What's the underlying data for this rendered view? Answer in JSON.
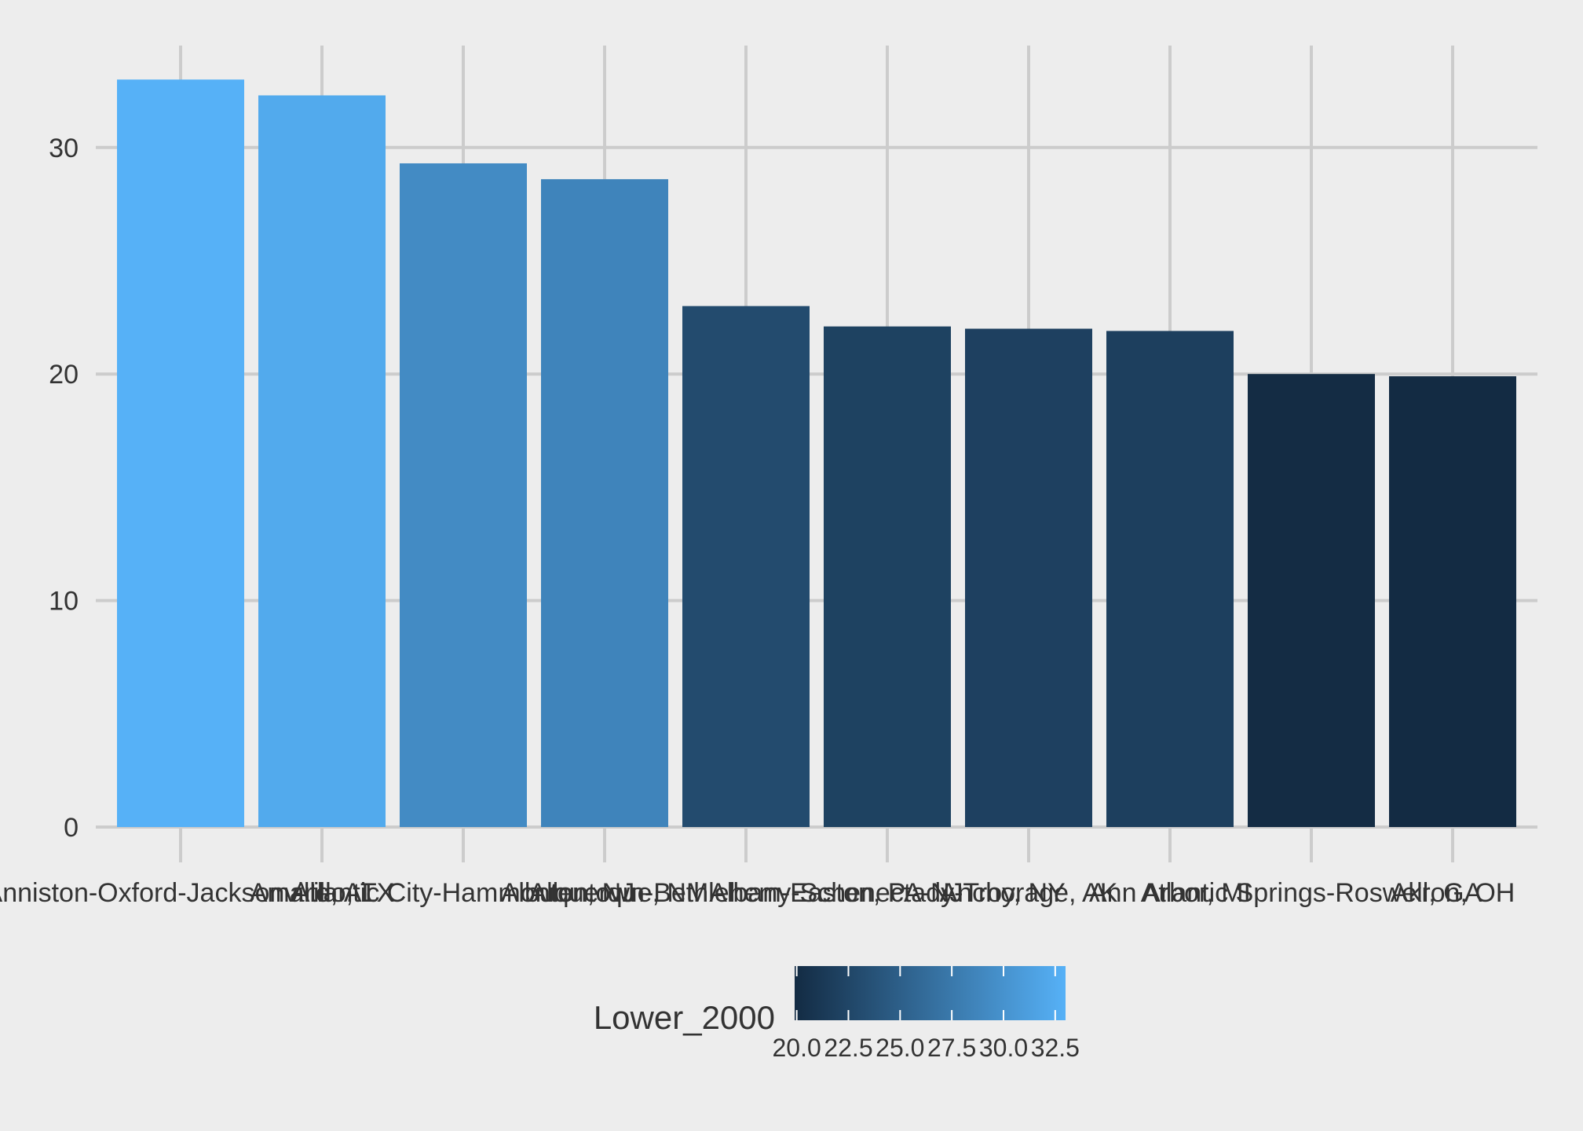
{
  "chart_data": {
    "type": "bar",
    "categories": [
      "Anniston-Oxford-Jacksonville, AL",
      "Amarillo, TX",
      "Atlantic City-Hammonton, NJ",
      "Albuquerque, NM",
      "Allentown-Bethlehem-Easton, PA-NJ",
      "Albany-Schenectady-Troy, NY",
      "Anchorage, AK",
      "Ann Arbor, MI",
      "Atlantic Springs-Roswell, GA",
      "Akron, OH"
    ],
    "values": [
      33.0,
      32.3,
      29.3,
      28.6,
      23.0,
      22.1,
      22.0,
      21.9,
      20.0,
      19.9
    ],
    "title": "",
    "xlabel": "",
    "ylabel": "",
    "ylim": [
      0,
      34.5
    ],
    "y_ticks": [
      0,
      10,
      20,
      30
    ],
    "grid": true,
    "legend": {
      "title": "Lower_2000",
      "placement": "bottom",
      "type": "colorbar",
      "range": [
        19.9,
        33.0
      ],
      "ticks": [
        "20.0",
        "22.5",
        "25.0",
        "27.5",
        "30.0",
        "32.5"
      ],
      "low_color": "#132b43",
      "high_color": "#56b1f7"
    },
    "colors": {
      "background": "#ededed",
      "grid": "#cccccc",
      "text": "#333333"
    }
  }
}
